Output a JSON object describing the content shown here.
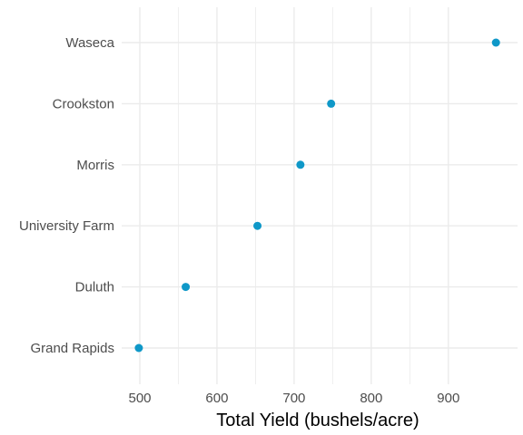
{
  "chart_data": {
    "type": "scatter",
    "title": "",
    "xlabel": "Total Yield (bushels/acre)",
    "ylabel": "",
    "xlim": [
      472,
      970
    ],
    "x_ticks": [
      500,
      600,
      700,
      800,
      900
    ],
    "categories": [
      "Grand Rapids",
      "Duluth",
      "University Farm",
      "Morris",
      "Crookston",
      "Waseca"
    ],
    "values": [
      498.7,
      559.5,
      652.5,
      708.2,
      748.0,
      961.7
    ],
    "grid": true,
    "legend": "none",
    "colors": {
      "point": "#0f98c8",
      "grid": "#ebebeb",
      "tick_text": "#4d4d4d",
      "title_text": "#000000"
    }
  }
}
